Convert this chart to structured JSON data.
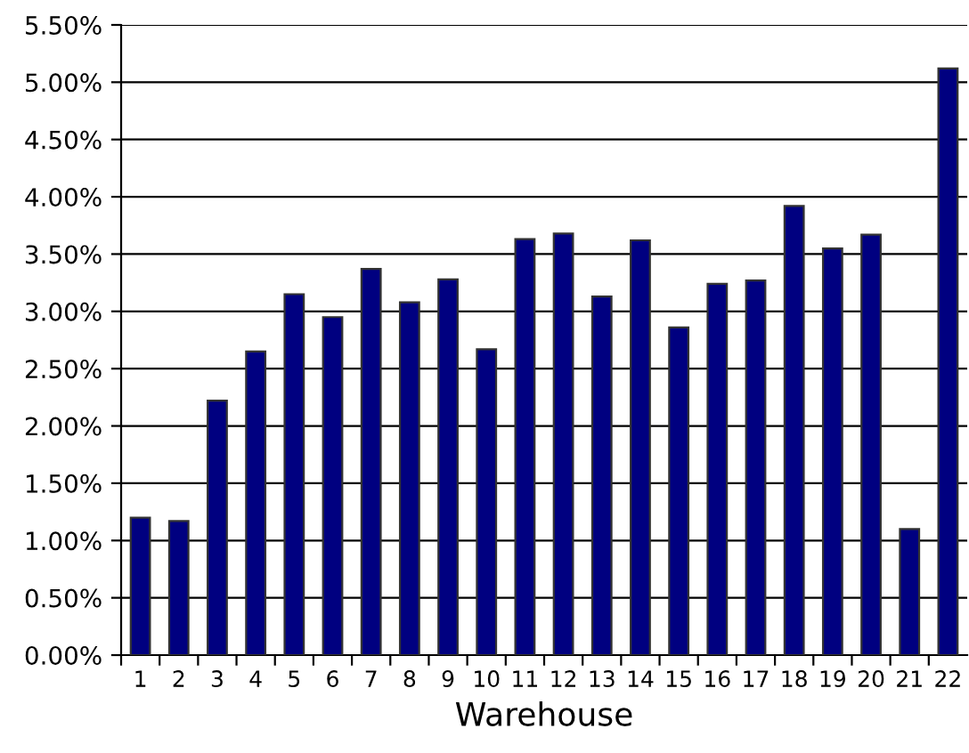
{
  "chart_data": {
    "type": "bar",
    "xlabel": "Warehouse",
    "categories": [
      "1",
      "2",
      "3",
      "4",
      "5",
      "6",
      "7",
      "8",
      "9",
      "10",
      "11",
      "12",
      "13",
      "14",
      "15",
      "16",
      "17",
      "18",
      "19",
      "20",
      "21",
      "22"
    ],
    "values": [
      1.2,
      1.17,
      2.22,
      2.65,
      3.15,
      2.95,
      3.37,
      3.08,
      3.28,
      2.67,
      3.63,
      3.68,
      3.13,
      3.62,
      2.86,
      3.24,
      3.27,
      3.92,
      3.55,
      3.67,
      1.1,
      5.12
    ],
    "color": "#000080",
    "ylim": [
      0,
      5.5
    ],
    "yticks": [
      {
        "value": 0,
        "label": "0.00%"
      },
      {
        "value": 0.5,
        "label": "0.50%"
      },
      {
        "value": 1,
        "label": "1.00%"
      },
      {
        "value": 1.5,
        "label": "1.50%"
      },
      {
        "value": 2,
        "label": "2.00%"
      },
      {
        "value": 2.5,
        "label": "2.50%"
      },
      {
        "value": 3,
        "label": "3.00%"
      },
      {
        "value": 3.5,
        "label": "3.50%"
      },
      {
        "value": 4,
        "label": "4.00%"
      },
      {
        "value": 4.5,
        "label": "4.50%"
      },
      {
        "value": 5,
        "label": "5.00%"
      },
      {
        "value": 5.5,
        "label": "5.50%"
      }
    ],
    "grid": "y",
    "legend": false
  }
}
